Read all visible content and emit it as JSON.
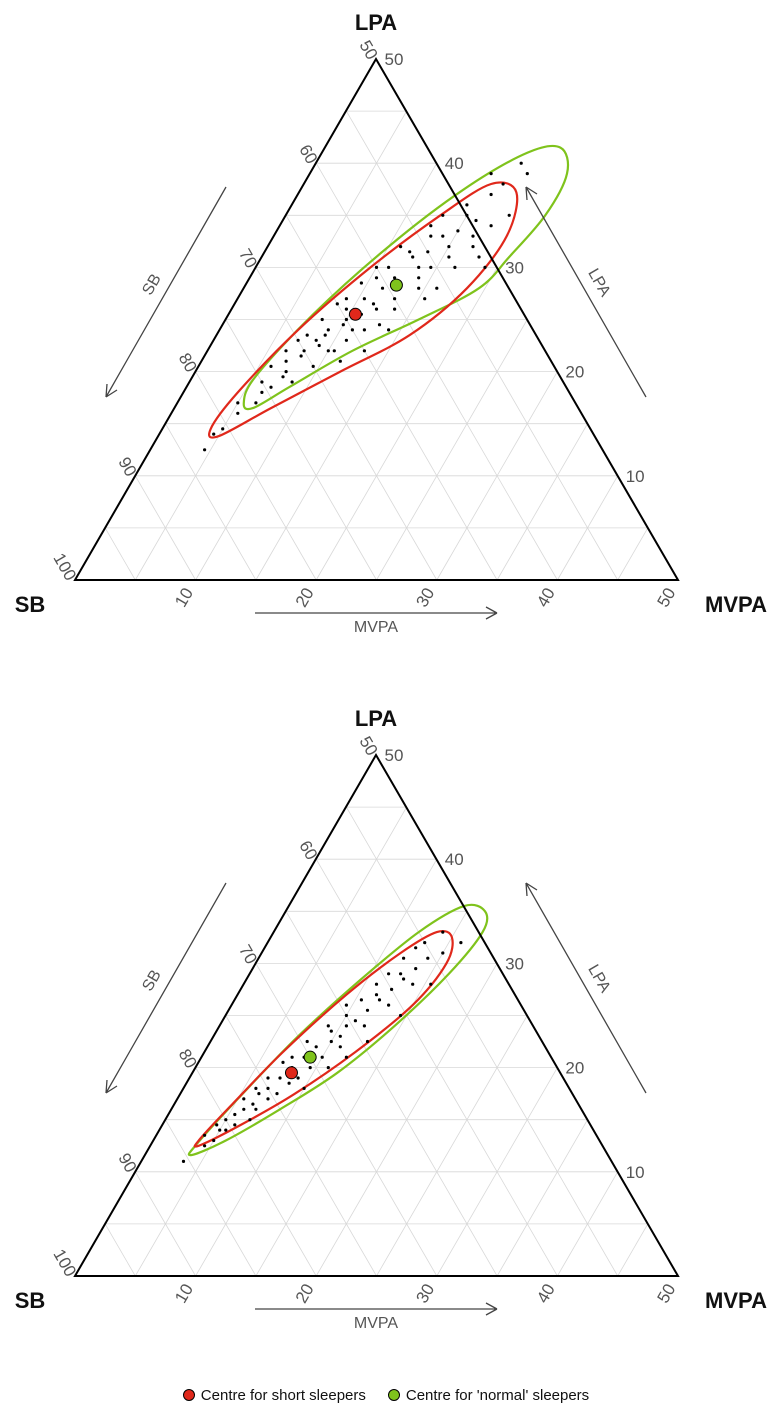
{
  "legend": {
    "short_label": "Centre for short sleepers",
    "normal_label": "Centre for 'normal' sleepers",
    "short_color": "#e0281b",
    "normal_color": "#7fc31c"
  },
  "chart_data": [
    {
      "type": "ternary-scatter",
      "vertices": {
        "top": "LPA",
        "left": "SB",
        "right": "MVPA"
      },
      "axis_titles": {
        "left_edge": "SB",
        "right_edge": "LPA",
        "bottom_edge": "MVPA"
      },
      "sb_ticks": [
        "50",
        "60",
        "70",
        "80",
        "90",
        "100"
      ],
      "lpa_ticks": [
        "10",
        "20",
        "30",
        "40",
        "50"
      ],
      "mvpa_ticks": [
        "10",
        "20",
        "30",
        "40",
        "50"
      ],
      "ranges": {
        "SB": [
          50,
          100
        ],
        "LPA": [
          0,
          50
        ],
        "MVPA": [
          0,
          50
        ]
      },
      "grid": true,
      "centres": {
        "short_sleepers": {
          "MVPA": 10.5,
          "LPA": 25.5
        },
        "normal_sleepers": {
          "MVPA": 12.5,
          "LPA": 28.3
        }
      },
      "contours": {
        "normal_sleepers": [
          [
            6.5,
            16.5
          ],
          [
            8.5,
            18.5
          ],
          [
            12,
            22
          ],
          [
            16,
            25
          ],
          [
            19.5,
            28
          ],
          [
            20.5,
            31
          ],
          [
            21.5,
            35
          ],
          [
            21.3,
            39
          ],
          [
            19.5,
            41.5
          ],
          [
            17,
            41
          ],
          [
            13.5,
            37.5
          ],
          [
            10,
            32
          ],
          [
            7,
            25.5
          ],
          [
            5.2,
            19.5
          ],
          [
            5.5,
            17
          ]
        ],
        "short_sleepers": [
          [
            5,
            13.8
          ],
          [
            8,
            16.5
          ],
          [
            12,
            20
          ],
          [
            16,
            23.5
          ],
          [
            18.5,
            28
          ],
          [
            19.3,
            33
          ],
          [
            18,
            37.2
          ],
          [
            15.5,
            38
          ],
          [
            12.8,
            35
          ],
          [
            9.5,
            30
          ],
          [
            6.5,
            24
          ],
          [
            4.5,
            18
          ],
          [
            4,
            14.5
          ]
        ]
      },
      "points": [
        [
          5,
          14.5
        ],
        [
          6.5,
          17
        ],
        [
          7.5,
          20
        ],
        [
          8,
          22
        ],
        [
          9,
          24
        ],
        [
          9.5,
          26
        ],
        [
          10,
          25
        ],
        [
          10.5,
          27
        ],
        [
          11,
          23
        ],
        [
          12,
          26
        ],
        [
          12,
          29
        ],
        [
          12.5,
          31
        ],
        [
          13,
          27
        ],
        [
          13.5,
          30
        ],
        [
          14,
          33
        ],
        [
          14.5,
          28
        ],
        [
          15,
          35
        ],
        [
          15.5,
          31
        ],
        [
          16,
          37
        ],
        [
          16.5,
          33
        ],
        [
          17,
          40
        ],
        [
          18,
          39
        ],
        [
          6,
          19
        ],
        [
          7,
          21
        ],
        [
          8.5,
          19
        ],
        [
          9,
          27
        ],
        [
          10,
          30
        ],
        [
          11,
          32
        ],
        [
          11.5,
          28
        ],
        [
          13,
          35
        ],
        [
          14,
          24
        ],
        [
          15,
          32
        ],
        [
          17.5,
          34
        ],
        [
          18,
          31
        ],
        [
          16,
          28
        ],
        [
          13,
          22
        ],
        [
          9,
          22.5
        ],
        [
          7.5,
          23.5
        ],
        [
          11.5,
          21
        ],
        [
          10.5,
          29
        ],
        [
          12.5,
          34
        ],
        [
          14.5,
          36
        ],
        [
          8,
          25
        ],
        [
          6.5,
          22
        ],
        [
          5.5,
          16
        ],
        [
          4.5,
          12.5
        ],
        [
          7,
          18.5
        ],
        [
          9.5,
          20.5
        ],
        [
          10.5,
          22
        ],
        [
          11,
          25.5
        ],
        [
          12,
          24
        ],
        [
          13.5,
          26
        ],
        [
          14.5,
          30
        ],
        [
          15.5,
          27
        ],
        [
          19,
          30
        ],
        [
          18.5,
          35
        ],
        [
          16.5,
          38
        ],
        [
          15,
          39
        ],
        [
          13,
          33
        ],
        [
          12,
          31.5
        ],
        [
          11,
          30
        ],
        [
          9.5,
          28.5
        ],
        [
          8.5,
          26.5
        ],
        [
          7,
          23
        ],
        [
          6,
          20.5
        ],
        [
          8,
          21.5
        ],
        [
          9,
          23.5
        ],
        [
          10,
          24.5
        ],
        [
          11.5,
          26.5
        ],
        [
          12.5,
          28.5
        ],
        [
          13.5,
          31.5
        ],
        [
          14,
          29
        ],
        [
          15,
          33.5
        ],
        [
          16,
          34.5
        ],
        [
          17,
          32
        ],
        [
          16.5,
          30
        ],
        [
          13,
          24.5
        ],
        [
          11,
          24
        ],
        [
          10,
          22
        ],
        [
          8.5,
          23
        ],
        [
          7.5,
          19.5
        ],
        [
          6.5,
          18
        ],
        [
          5,
          17
        ],
        [
          4.5,
          14
        ]
      ]
    },
    {
      "type": "ternary-scatter",
      "vertices": {
        "top": "LPA",
        "left": "SB",
        "right": "MVPA"
      },
      "axis_titles": {
        "left_edge": "SB",
        "right_edge": "LPA",
        "bottom_edge": "MVPA"
      },
      "sb_ticks": [
        "50",
        "60",
        "70",
        "80",
        "90",
        "100"
      ],
      "lpa_ticks": [
        "10",
        "20",
        "30",
        "40",
        "50"
      ],
      "mvpa_ticks": [
        "10",
        "20",
        "30",
        "40",
        "50"
      ],
      "ranges": {
        "SB": [
          50,
          100
        ],
        "LPA": [
          0,
          50
        ],
        "MVPA": [
          0,
          50
        ]
      },
      "grid": true,
      "centres": {
        "short_sleepers": {
          "MVPA": 8.2,
          "LPA": 19.5
        },
        "normal_sleepers": {
          "MVPA": 9.0,
          "LPA": 21.0
        }
      },
      "contours": {
        "normal_sleepers": [
          [
            3.8,
            11.6
          ],
          [
            6,
            13
          ],
          [
            9,
            16
          ],
          [
            12,
            19.5
          ],
          [
            14.5,
            24
          ],
          [
            16.5,
            29
          ],
          [
            17.3,
            33
          ],
          [
            16.5,
            35
          ],
          [
            14.5,
            35.5
          ],
          [
            12,
            33
          ],
          [
            9.5,
            28.5
          ],
          [
            7,
            23
          ],
          [
            5,
            17
          ],
          [
            3.8,
            12.8
          ]
        ],
        "short_sleepers": [
          [
            4,
            12.5
          ],
          [
            6.5,
            14.5
          ],
          [
            9.5,
            17.5
          ],
          [
            12.5,
            21.5
          ],
          [
            15,
            26
          ],
          [
            15.8,
            30
          ],
          [
            15,
            32.5
          ],
          [
            13.5,
            33
          ],
          [
            11.5,
            31
          ],
          [
            9,
            27
          ],
          [
            6.5,
            21.5
          ],
          [
            4.8,
            16.5
          ],
          [
            3.8,
            13.2
          ]
        ]
      },
      "points": [
        [
          3.5,
          11
        ],
        [
          4.5,
          12.5
        ],
        [
          5,
          14
        ],
        [
          5.5,
          15.5
        ],
        [
          6,
          16
        ],
        [
          6.5,
          17.5
        ],
        [
          7,
          18
        ],
        [
          7.5,
          19
        ],
        [
          8,
          20
        ],
        [
          8.5,
          21
        ],
        [
          9,
          22
        ],
        [
          9.5,
          23.5
        ],
        [
          10,
          25
        ],
        [
          10.5,
          26.5
        ],
        [
          11,
          28
        ],
        [
          11.5,
          29
        ],
        [
          12,
          30.5
        ],
        [
          12.5,
          31.5
        ],
        [
          13,
          32
        ],
        [
          14,
          33
        ],
        [
          15,
          31
        ],
        [
          14,
          28
        ],
        [
          13,
          26
        ],
        [
          12,
          24
        ],
        [
          11,
          22
        ],
        [
          10,
          21
        ],
        [
          9,
          19
        ],
        [
          8,
          17.5
        ],
        [
          7,
          16
        ],
        [
          6,
          14.5
        ],
        [
          5,
          13
        ],
        [
          9.5,
          26
        ],
        [
          10.5,
          23
        ],
        [
          11.5,
          25.5
        ],
        [
          12.5,
          27.5
        ],
        [
          13.5,
          29.5
        ],
        [
          11,
          20
        ],
        [
          13,
          22.5
        ],
        [
          8.5,
          18.5
        ],
        [
          7.5,
          21
        ],
        [
          6.5,
          19
        ],
        [
          5.5,
          17
        ],
        [
          4,
          13.5
        ],
        [
          7,
          15
        ],
        [
          10,
          18
        ],
        [
          12,
          21
        ],
        [
          14.5,
          25
        ],
        [
          15.5,
          28
        ],
        [
          16,
          32
        ],
        [
          14,
          30.5
        ],
        [
          12.5,
          29
        ],
        [
          10.5,
          24
        ],
        [
          9,
          24
        ],
        [
          8,
          22.5
        ],
        [
          7,
          20.5
        ],
        [
          6,
          18
        ],
        [
          5,
          15
        ],
        [
          8.5,
          19.5
        ],
        [
          9.5,
          20
        ],
        [
          10,
          22.5
        ],
        [
          11,
          24.5
        ],
        [
          12,
          26.5
        ],
        [
          13,
          28.5
        ],
        [
          11.5,
          27
        ],
        [
          9,
          21
        ],
        [
          7.5,
          17
        ],
        [
          6.5,
          16.5
        ],
        [
          5.5,
          14
        ],
        [
          4.5,
          14.5
        ]
      ]
    }
  ]
}
